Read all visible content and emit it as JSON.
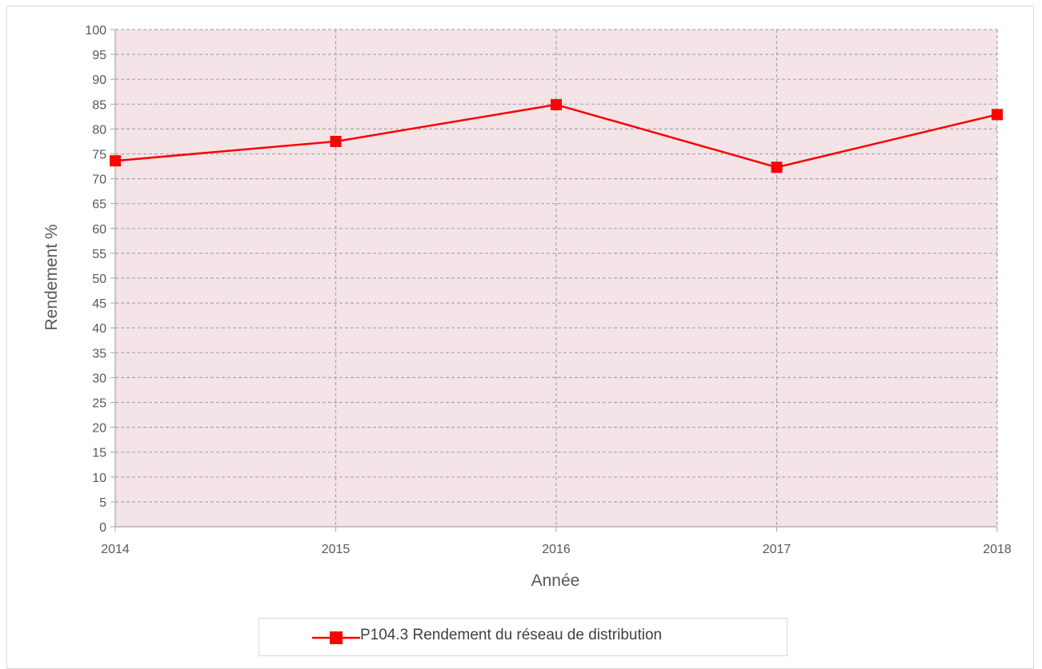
{
  "chart_data": {
    "type": "line",
    "title": "",
    "xlabel": "Année",
    "ylabel": "Rendement %",
    "categories": [
      "2014",
      "2015",
      "2016",
      "2017",
      "2018"
    ],
    "yticks": [
      "0",
      "5",
      "10",
      "15",
      "20",
      "25",
      "30",
      "35",
      "40",
      "45",
      "50",
      "55",
      "60",
      "65",
      "70",
      "75",
      "80",
      "85",
      "90",
      "95",
      "100"
    ],
    "ylim": [
      0,
      100
    ],
    "grid": true,
    "legend_position": "bottom",
    "series": [
      {
        "name": "P104.3 Rendement du réseau de distribution",
        "values": [
          73.6,
          77.5,
          84.9,
          72.3,
          82.9
        ],
        "color": "#ff0000",
        "marker": "square"
      }
    ],
    "plot_background": "#f4e4e8"
  }
}
